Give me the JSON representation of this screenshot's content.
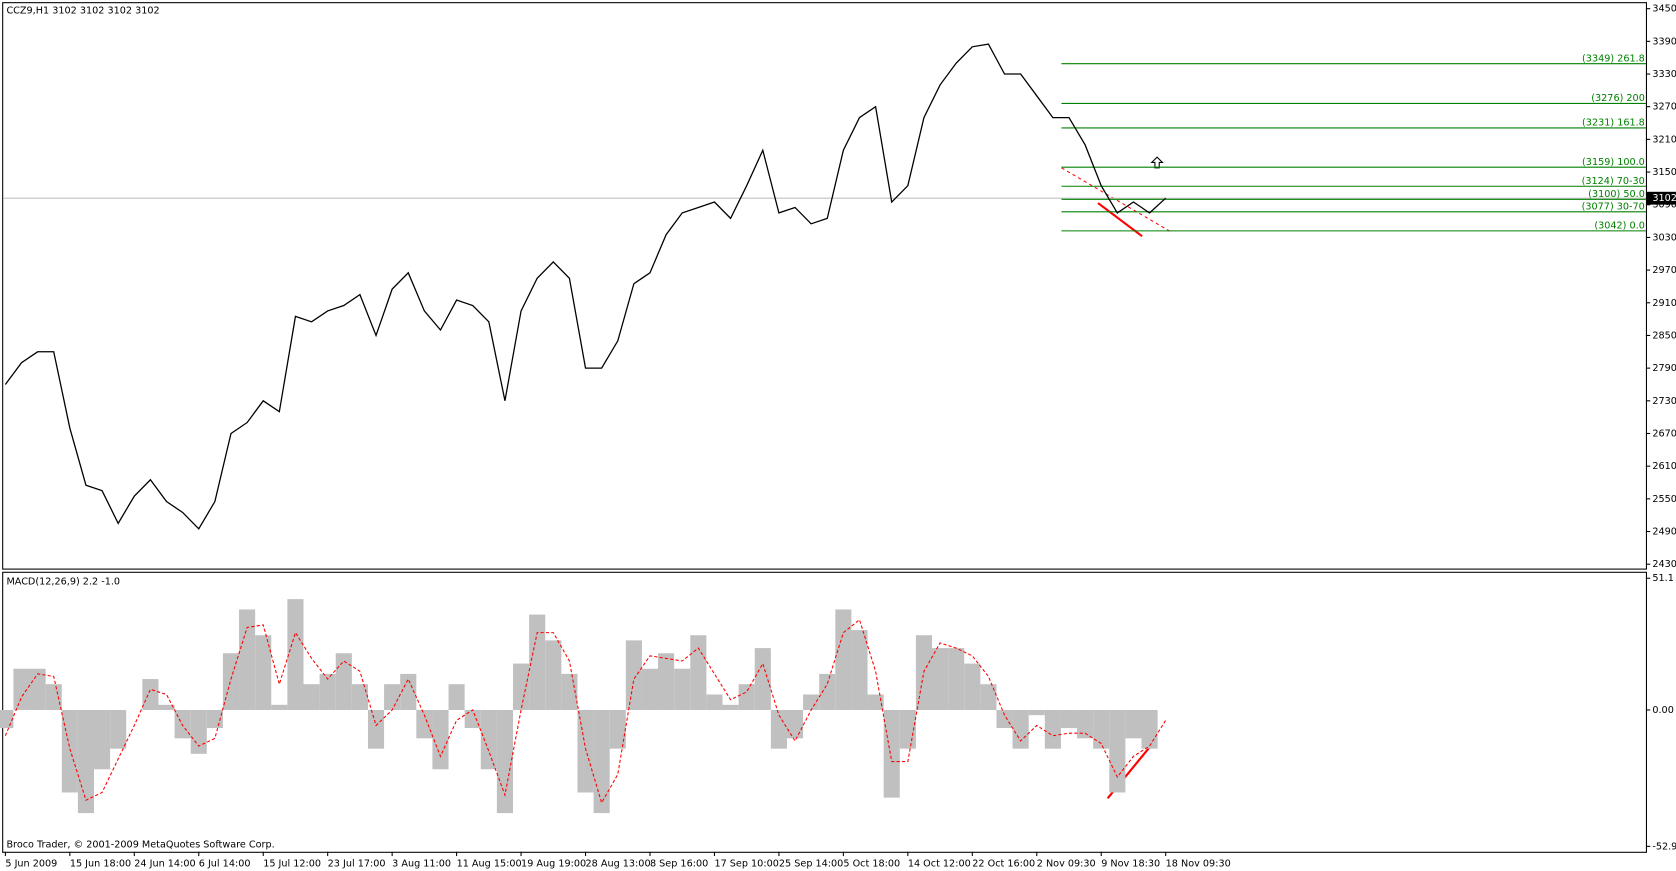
{
  "chart_data": [
    {
      "type": "line",
      "title": "CCZ9,H1  3102 3102 3102 3102",
      "categories": [
        "5 Jun 2009",
        null,
        null,
        null,
        "15 Jun 18:00",
        null,
        null,
        null,
        "24 Jun 14:00",
        null,
        null,
        null,
        "6 Jul 14:00",
        null,
        null,
        null,
        "15 Jul 12:00",
        null,
        null,
        null,
        "23 Jul 17:00",
        null,
        null,
        null,
        "3 Aug 11:00",
        null,
        null,
        null,
        "11 Aug 15:00",
        null,
        null,
        null,
        "19 Aug 19:00",
        null,
        null,
        null,
        "28 Aug 13:00",
        null,
        null,
        null,
        "8 Sep 16:00",
        null,
        null,
        null,
        "17 Sep 10:00",
        null,
        null,
        null,
        "25 Sep 14:00",
        null,
        null,
        null,
        "5 Oct 18:00",
        null,
        null,
        null,
        "14 Oct 12:00",
        null,
        null,
        null,
        "22 Oct 16:00",
        null,
        null,
        null,
        "2 Nov 09:30",
        null,
        null,
        null,
        "9 Nov 18:30",
        null,
        null,
        null,
        "18 Nov 09:30"
      ],
      "values": [
        2760,
        2800,
        2820,
        2820,
        2680,
        2575,
        2565,
        2505,
        2555,
        2585,
        2545,
        2525,
        2495,
        2545,
        2670,
        2690,
        2730,
        2710,
        2885,
        2875,
        2895,
        2905,
        2925,
        2850,
        2935,
        2965,
        2895,
        2860,
        2915,
        2905,
        2875,
        2730,
        2895,
        2955,
        2985,
        2955,
        2790,
        2790,
        2840,
        2945,
        2965,
        3035,
        3075,
        3085,
        3095,
        3065,
        3125,
        3190,
        3075,
        3085,
        3055,
        3065,
        3190,
        3250,
        3270,
        3095,
        3125,
        3250,
        3310,
        3350,
        3380,
        3385,
        3330,
        3330,
        3290,
        3250,
        3250,
        3200,
        3125,
        3075,
        3095,
        3075,
        3102
      ],
      "color": "#000000",
      "ylim": [
        2422,
        3462
      ],
      "yticks": [
        2430,
        2490,
        2550,
        2610,
        2670,
        2730,
        2790,
        2850,
        2910,
        2970,
        3030,
        3090,
        3150,
        3210,
        3270,
        3330,
        3390,
        3450
      ],
      "current": 3102,
      "fib_levels": [
        {
          "value": 3349,
          "label": "(3349)  261.8"
        },
        {
          "value": 3276,
          "label": "(3276)  200"
        },
        {
          "value": 3231,
          "label": "(3231)  161.8"
        },
        {
          "value": 3159,
          "label": "(3159)  100.0"
        },
        {
          "value": 3124,
          "label": "(3124)  70-30"
        },
        {
          "value": 3100,
          "label": "(3100)  50.0"
        },
        {
          "value": 3077,
          "label": "(3077)  30-70"
        },
        {
          "value": 3042,
          "label": "(3042)  0.0"
        }
      ],
      "fib_color": "#008000"
    },
    {
      "type": "macd",
      "title": "MACD(12,26,9) 2.2 -1.0",
      "credit": "Broco Trader, © 2001-2009 MetaQuotes Software Corp.",
      "values": [
        -7,
        16,
        16,
        10,
        -32,
        -40,
        -23,
        -15,
        0,
        12,
        2,
        -11,
        -17,
        -7,
        22,
        39,
        29,
        2,
        43,
        10,
        14,
        22,
        10,
        -15,
        10,
        14,
        -11,
        -23,
        10,
        -7,
        -23,
        -40,
        18,
        37,
        27,
        14,
        -32,
        -40,
        -15,
        27,
        16,
        22,
        16,
        29,
        6,
        2,
        10,
        24,
        -15,
        -11,
        6,
        14,
        39,
        31,
        6,
        -34,
        -15,
        29,
        24,
        24,
        18,
        10,
        -7,
        -15,
        -2,
        -15,
        -7,
        -11,
        -15,
        -32,
        -11,
        -15,
        0
      ],
      "color": "#c0c0c0",
      "signal_values": [
        -10,
        5,
        14,
        13,
        -15,
        -35,
        -32,
        -19,
        -6,
        8,
        6,
        -6,
        -14,
        -11,
        12,
        32,
        33,
        10,
        30,
        20,
        12,
        19,
        15,
        -6,
        0,
        12,
        -2,
        -18,
        -4,
        0,
        -16,
        -33,
        0,
        30,
        30,
        19,
        -15,
        -36,
        -25,
        12,
        21,
        20,
        19,
        24,
        14,
        4,
        7,
        18,
        -2,
        -12,
        0,
        10,
        30,
        35,
        15,
        -20,
        -20,
        15,
        26,
        24,
        21,
        13,
        -2,
        -12,
        -6,
        -10,
        -9,
        -9,
        -13,
        -26,
        -18,
        -14,
        -4
      ],
      "signal_color": "#ff0000",
      "ylim": [
        -55,
        53.2
      ],
      "yticks": [
        -52.9,
        {
          "value": 0,
          "label": "0.00"
        },
        51.1
      ]
    }
  ]
}
